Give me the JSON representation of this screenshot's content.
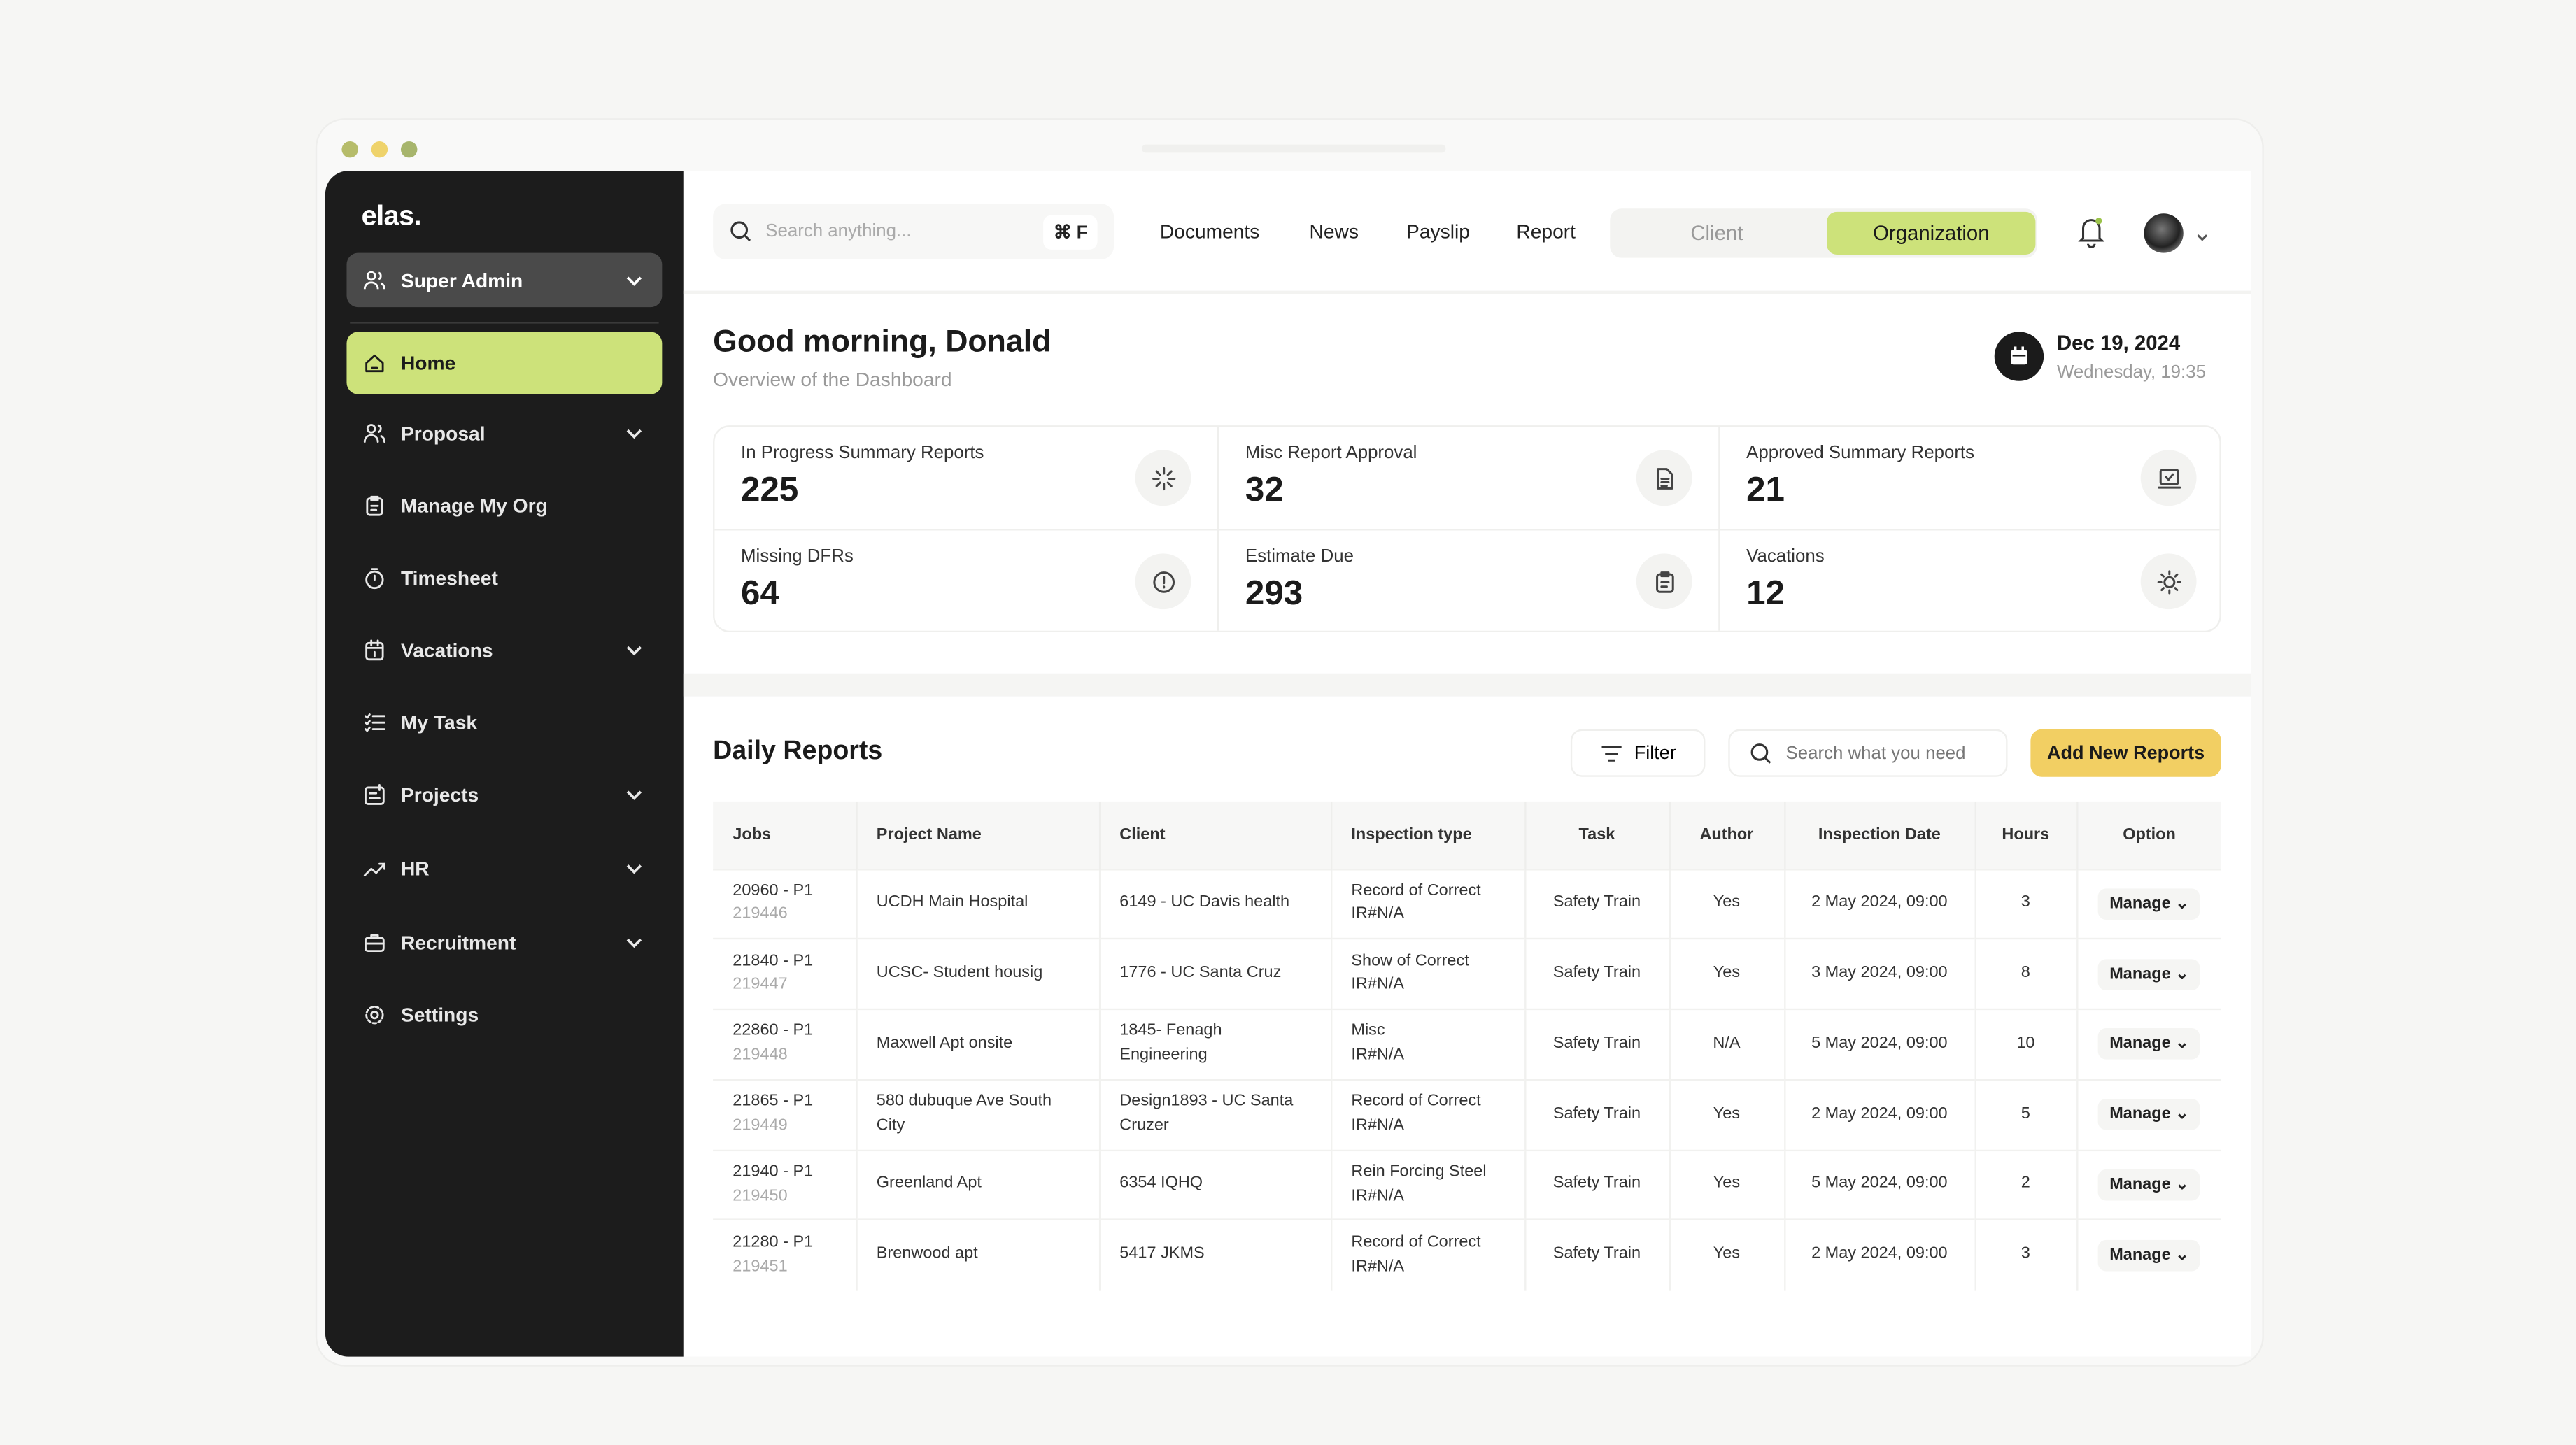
{
  "colors": {
    "accent": "#cde27a",
    "primary_button": "#f2cf63",
    "sidebar_bg": "#1c1c1c"
  },
  "window": {
    "dots": [
      "#b6bc6a",
      "#efd36b",
      "#a7b56c"
    ]
  },
  "sidebar": {
    "logo": "elas.",
    "role": "Super Admin",
    "items": [
      {
        "label": "Home",
        "icon": "home-icon",
        "active": true,
        "expandable": false
      },
      {
        "label": "Proposal",
        "icon": "users-icon",
        "expandable": true
      },
      {
        "label": "Manage My Org",
        "icon": "clipboard-icon",
        "expandable": false
      },
      {
        "label": "Timesheet",
        "icon": "stopwatch-icon",
        "expandable": false
      },
      {
        "label": "Vacations",
        "icon": "calendar-icon",
        "expandable": true
      },
      {
        "label": "My Task",
        "icon": "checklist-icon",
        "expandable": false
      },
      {
        "label": "Projects",
        "icon": "projects-icon",
        "expandable": true
      },
      {
        "label": "HR",
        "icon": "trend-icon",
        "expandable": true
      },
      {
        "label": "Recruitment",
        "icon": "briefcase-icon",
        "expandable": true
      },
      {
        "label": "Settings",
        "icon": "gear-icon",
        "expandable": false
      }
    ]
  },
  "header": {
    "search_placeholder": "Search anything...",
    "shortcut": "⌘ F",
    "nav": [
      "Documents",
      "News",
      "Payslip",
      "Report"
    ],
    "toggle": {
      "options": [
        "Client",
        "Organization"
      ],
      "selected": "Organization"
    }
  },
  "greeting": {
    "title": "Good morning, Donald",
    "subtitle": "Overview of the Dashboard",
    "date": "Dec 19, 2024",
    "time": "Wednesday, 19:35"
  },
  "stats": [
    {
      "label": "In Progress Summary Reports",
      "value": "225",
      "icon": "loader-icon"
    },
    {
      "label": "Misc Report Approval",
      "value": "32",
      "icon": "document-icon"
    },
    {
      "label": "Approved Summary Reports",
      "value": "21",
      "icon": "monitor-check-icon"
    },
    {
      "label": "Missing DFRs",
      "value": "64",
      "icon": "alert-circle-icon"
    },
    {
      "label": "Estimate Due",
      "value": "293",
      "icon": "clipboard-icon"
    },
    {
      "label": "Vacations",
      "value": "12",
      "icon": "sun-icon"
    }
  ],
  "reports": {
    "title": "Daily Reports",
    "filter_label": "Filter",
    "search_placeholder": "Search what you need",
    "add_label": "Add New Reports",
    "columns": [
      "Jobs",
      "Project Name",
      "Client",
      "Inspection type",
      "Task",
      "Author",
      "Inspection Date",
      "Hours",
      "Option"
    ],
    "rows": [
      {
        "job": "20960 - P1",
        "job_id": "219446",
        "project": "UCDH Main Hospital",
        "client": "6149 - UC Davis health",
        "type": "Record of Correct",
        "type2": "IR#N/A",
        "task": "Safety Train",
        "author": "Yes",
        "date": "2 May 2024, 09:00",
        "hours": "3",
        "option": "Manage"
      },
      {
        "job": "21840 - P1",
        "job_id": "219447",
        "project": "UCSC- Student housig",
        "client": "1776 - UC Santa Cruz",
        "type": "Show of Correct",
        "type2": "IR#N/A",
        "task": "Safety Train",
        "author": "Yes",
        "date": "3 May 2024, 09:00",
        "hours": "8",
        "option": "Manage"
      },
      {
        "job": "22860 - P1",
        "job_id": "219448",
        "project": "Maxwell Apt onsite",
        "client": "1845- Fenagh Engineering",
        "type": "Misc",
        "type2": "IR#N/A",
        "task": "Safety Train",
        "author": "N/A",
        "date": "5 May 2024, 09:00",
        "hours": "10",
        "option": "Manage"
      },
      {
        "job": "21865 - P1",
        "job_id": "219449",
        "project": "580 dubuque Ave South City",
        "client": "Design1893 - UC Santa Cruzer",
        "type": "Record of Correct",
        "type2": "IR#N/A",
        "task": "Safety Train",
        "author": "Yes",
        "date": "2 May 2024, 09:00",
        "hours": "5",
        "option": "Manage"
      },
      {
        "job": "21940 - P1",
        "job_id": "219450",
        "project": "Greenland Apt",
        "client": "6354 IQHQ",
        "type": "Rein Forcing Steel",
        "type2": "IR#N/A",
        "task": "Safety Train",
        "author": "Yes",
        "date": "5 May 2024, 09:00",
        "hours": "2",
        "option": "Manage"
      },
      {
        "job": "21280 - P1",
        "job_id": "219451",
        "project": "Brenwood apt",
        "client": "5417 JKMS",
        "type": "Record of Correct",
        "type2": "IR#N/A",
        "task": "Safety Train",
        "author": "Yes",
        "date": "2 May 2024, 09:00",
        "hours": "3",
        "option": "Manage"
      }
    ]
  }
}
